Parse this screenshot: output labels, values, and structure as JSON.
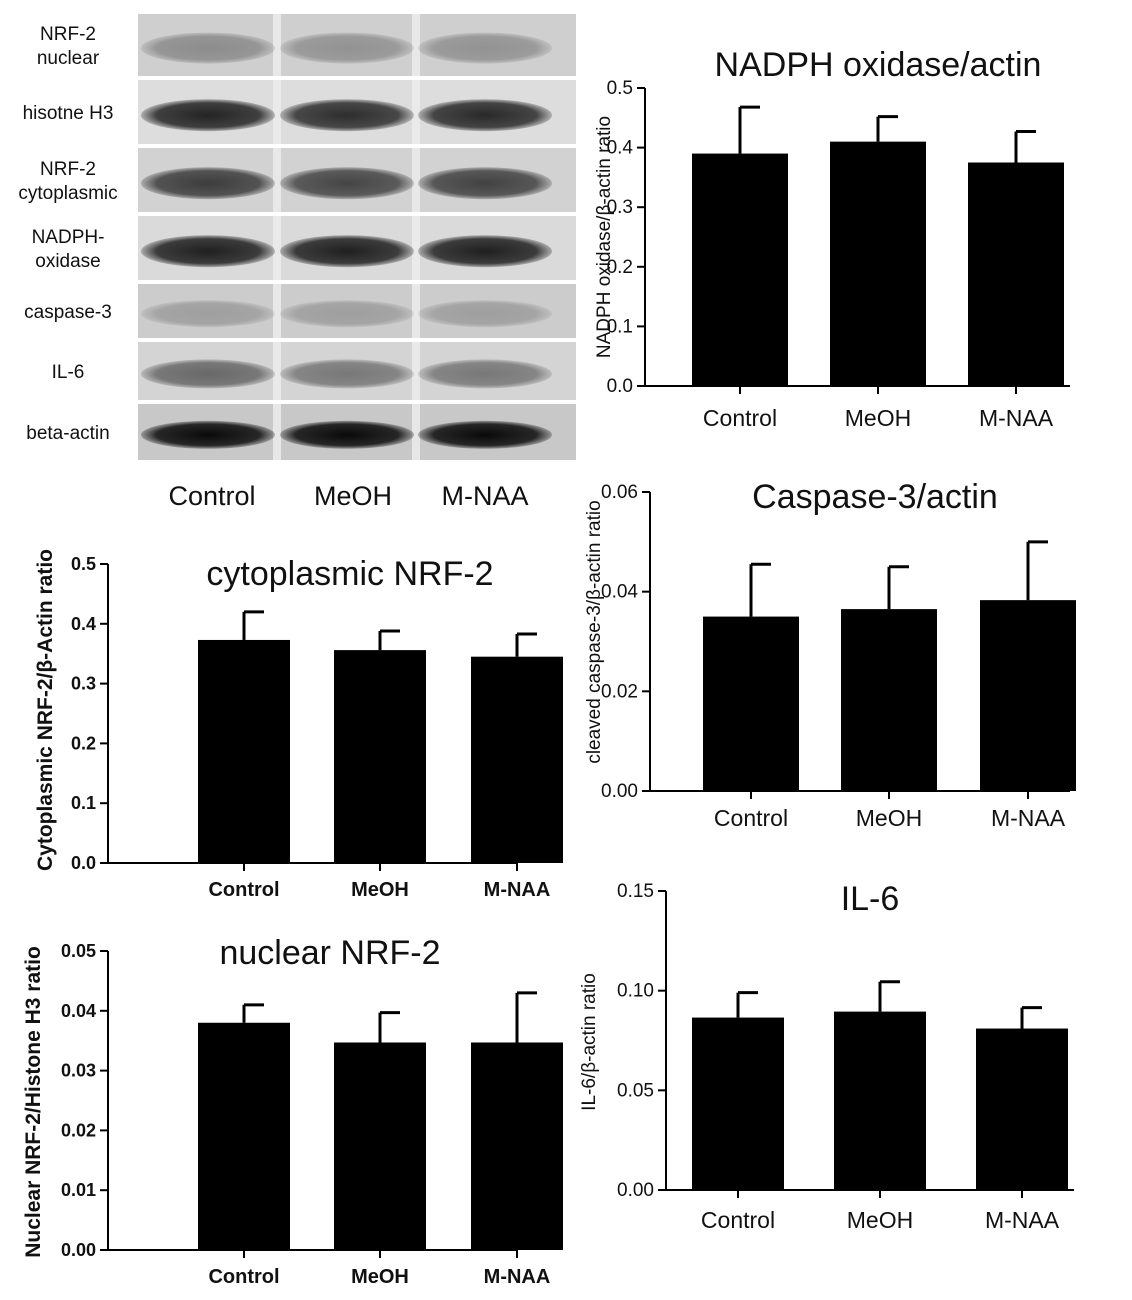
{
  "blot": {
    "rows": [
      {
        "label_lines": [
          "NRF-2",
          "nuclear"
        ],
        "bg": "#cfcfcf",
        "band_color": "#555555",
        "intensity": [
          0.55,
          0.5,
          0.5
        ]
      },
      {
        "label_lines": [
          "hisotne H3"
        ],
        "bg": "#dddddd",
        "band_color": "#1a1a1a",
        "intensity": [
          0.95,
          0.9,
          0.92
        ]
      },
      {
        "label_lines": [
          "NRF-2",
          "cytoplasmic"
        ],
        "bg": "#d2d2d2",
        "band_color": "#222222",
        "intensity": [
          0.85,
          0.8,
          0.82
        ]
      },
      {
        "label_lines": [
          "NADPH-",
          "oxidase"
        ],
        "bg": "#dadada",
        "band_color": "#161616",
        "intensity": [
          0.95,
          0.95,
          0.95
        ]
      },
      {
        "label_lines": [
          "caspase-3"
        ],
        "bg": "#cccccc",
        "band_color": "#666666",
        "intensity": [
          0.45,
          0.45,
          0.45
        ]
      },
      {
        "label_lines": [
          "IL-6"
        ],
        "bg": "#d4d4d4",
        "band_color": "#3a3a3a",
        "intensity": [
          0.7,
          0.6,
          0.6
        ]
      },
      {
        "label_lines": [
          "beta-actin"
        ],
        "bg": "#c8c8c8",
        "band_color": "#0a0a0a",
        "intensity": [
          1.0,
          1.0,
          1.0
        ]
      }
    ],
    "lane_labels": [
      "Control",
      "MeOH",
      "M-NAA"
    ]
  },
  "chart_data": [
    {
      "id": "nadph",
      "type": "bar",
      "title": "NADPH oxidase/actin",
      "xlabel": "",
      "ylabel": "NADPH oxidase/β-actin ratio",
      "categories": [
        "Control",
        "MeOH",
        "M-NAA"
      ],
      "values": [
        0.39,
        0.41,
        0.375
      ],
      "errors": [
        0.078,
        0.042,
        0.052
      ],
      "ylim": [
        0,
        0.5
      ],
      "yticks": [
        "0.0",
        "0.1",
        "0.2",
        "0.3",
        "0.4",
        "0.5"
      ],
      "bold_ticks": false,
      "bar_color": "#000000"
    },
    {
      "id": "caspase",
      "type": "bar",
      "title": "Caspase-3/actin",
      "xlabel": "",
      "ylabel": "cleaved caspase-3/β-actin ratio",
      "categories": [
        "Control",
        "MeOH",
        "M-NAA"
      ],
      "values": [
        0.035,
        0.0365,
        0.0383
      ],
      "errors": [
        0.0105,
        0.0085,
        0.0117
      ],
      "ylim": [
        0,
        0.06
      ],
      "yticks": [
        "0.00",
        "0.02",
        "0.04",
        "0.06"
      ],
      "bold_ticks": false,
      "bar_color": "#000000"
    },
    {
      "id": "cyto",
      "type": "bar",
      "title": "cytoplasmic NRF-2",
      "xlabel": "",
      "ylabel": "Cytoplasmic NRF-2/β-Actin ratio",
      "categories": [
        "Control",
        "MeOH",
        "M-NAA"
      ],
      "values": [
        0.373,
        0.356,
        0.345
      ],
      "errors": [
        0.047,
        0.032,
        0.038
      ],
      "ylim": [
        0,
        0.5
      ],
      "yticks": [
        "0.0",
        "0.1",
        "0.2",
        "0.3",
        "0.4",
        "0.5"
      ],
      "bold_ticks": true,
      "bar_color": "#000000"
    },
    {
      "id": "il6",
      "type": "bar",
      "title": "IL-6",
      "xlabel": "",
      "ylabel": "IL-6/β-actin ratio",
      "categories": [
        "Control",
        "MeOH",
        "M-NAA"
      ],
      "values": [
        0.0865,
        0.0895,
        0.081
      ],
      "errors": [
        0.0125,
        0.015,
        0.0105
      ],
      "ylim": [
        0,
        0.15
      ],
      "yticks": [
        "0.00",
        "0.05",
        "0.10",
        "0.15"
      ],
      "bold_ticks": false,
      "bar_color": "#000000"
    },
    {
      "id": "nuclear",
      "type": "bar",
      "title": "nuclear NRF-2",
      "xlabel": "",
      "ylabel": "Nuclear NRF-2/Histone H3 ratio",
      "categories": [
        "Control",
        "MeOH",
        "M-NAA"
      ],
      "values": [
        0.038,
        0.0347,
        0.0347
      ],
      "errors": [
        0.003,
        0.005,
        0.0083
      ],
      "ylim": [
        0,
        0.05
      ],
      "yticks": [
        "0.00",
        "0.01",
        "0.02",
        "0.03",
        "0.04",
        "0.05"
      ],
      "bold_ticks": true,
      "bar_color": "#000000"
    }
  ]
}
